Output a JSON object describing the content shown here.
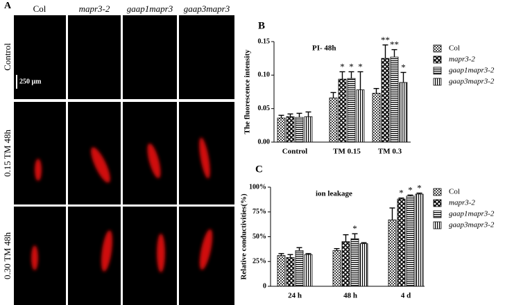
{
  "panel_a": {
    "label": "A",
    "columns": [
      "Col",
      "mapr3-2",
      "gaap1mapr3",
      "gaap3mapr3"
    ],
    "rows": [
      "Control",
      "0.15 TM 48h",
      "0.30 TM 48h"
    ],
    "scale_bar": "250 μm"
  },
  "chart_data": [
    {
      "type": "bar",
      "panel_label": "B",
      "title": "PI- 48h",
      "y_label": "The fluorescence intensity",
      "categories": [
        "Control",
        "TM 0.15",
        "TM 0.3"
      ],
      "ylim": [
        0,
        0.15
      ],
      "yticks": [
        {
          "value": 0,
          "label": "0.00"
        },
        {
          "value": 0.05,
          "label": "0.05"
        },
        {
          "value": 0.1,
          "label": "0.10"
        },
        {
          "value": 0.15,
          "label": "0.15"
        }
      ],
      "series": [
        {
          "name": "Col",
          "values": [
            0.036,
            0.066,
            0.073
          ],
          "errors": [
            0.004,
            0.008,
            0.007
          ],
          "significance": [
            null,
            null,
            null
          ]
        },
        {
          "name": "mapr3-2",
          "values": [
            0.038,
            0.094,
            0.125
          ],
          "errors": [
            0.004,
            0.011,
            0.02
          ],
          "significance": [
            null,
            "*",
            "**"
          ]
        },
        {
          "name": "gaap1mapr3-2",
          "values": [
            0.037,
            0.095,
            0.127
          ],
          "errors": [
            0.006,
            0.01,
            0.011
          ],
          "significance": [
            null,
            "*",
            "**"
          ]
        },
        {
          "name": "gaap3mapr3-2",
          "values": [
            0.038,
            0.078,
            0.089
          ],
          "errors": [
            0.007,
            0.027,
            0.015
          ],
          "significance": [
            null,
            "*",
            "*"
          ]
        }
      ]
    },
    {
      "type": "bar",
      "panel_label": "C",
      "title": "ion leakage",
      "y_label": "Relative conductivities(%)",
      "categories": [
        "24 h",
        "48 h",
        "4 d"
      ],
      "ylim": [
        0,
        100
      ],
      "yticks": [
        0,
        {
          "value": 25,
          "label": "25%"
        },
        {
          "value": 50,
          "label": "50%"
        },
        {
          "value": 75,
          "label": "75%"
        },
        {
          "value": 100,
          "label": "100%"
        }
      ],
      "series": [
        {
          "name": "Col",
          "values": [
            31,
            36,
            67
          ],
          "errors": [
            2,
            2,
            12
          ],
          "significance": [
            null,
            null,
            null
          ]
        },
        {
          "name": "mapr3-2",
          "values": [
            29,
            45,
            88
          ],
          "errors": [
            3,
            7,
            1
          ],
          "significance": [
            null,
            null,
            "*"
          ]
        },
        {
          "name": "gaap1mapr3-2",
          "values": [
            36,
            48,
            91
          ],
          "errors": [
            3,
            5,
            1
          ],
          "significance": [
            null,
            "*",
            "*"
          ]
        },
        {
          "name": "gaap3mapr3-2",
          "values": [
            32,
            43,
            93
          ],
          "errors": [
            1,
            1,
            1
          ],
          "significance": [
            null,
            null,
            "*"
          ]
        }
      ]
    }
  ]
}
